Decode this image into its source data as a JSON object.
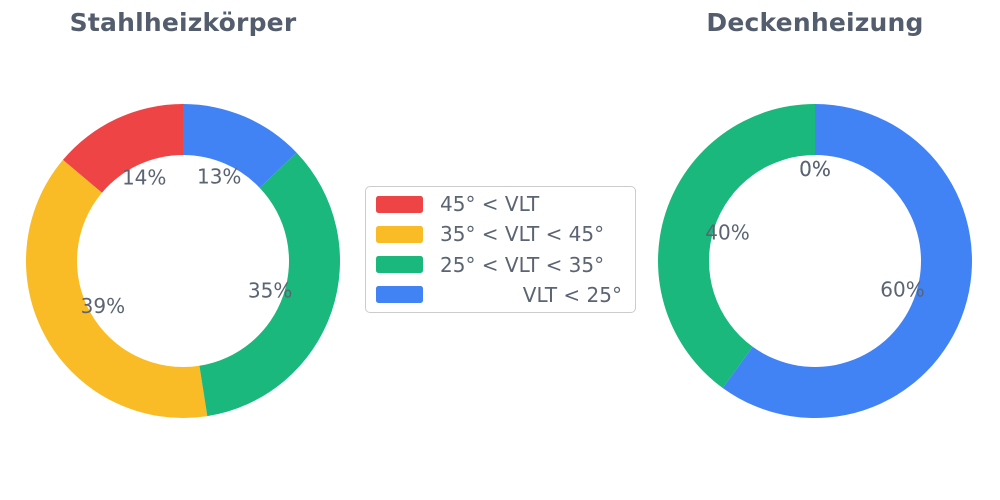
{
  "figure": {
    "background": "#ffffff",
    "label_color": "#5b6473",
    "title_color": "#535d6d"
  },
  "palette": [
    "#ee4445",
    "#f9bc26",
    "#1ab87d",
    "#4183f4"
  ],
  "legend": {
    "border_color": "#cccccc",
    "items": [
      {
        "label": "45° < VLT",
        "color": "#ee4445",
        "align": "left"
      },
      {
        "label": "35° < VLT < 45°",
        "color": "#f9bc26",
        "align": "left"
      },
      {
        "label": "25° < VLT < 35°",
        "color": "#1ab87d",
        "align": "left"
      },
      {
        "label": "VLT < 25°",
        "color": "#4183f4",
        "align": "right"
      }
    ]
  },
  "chart_data": [
    {
      "type": "pie",
      "title": "Stahlheizkörper",
      "categories": [
        "45° < VLT",
        "35° < VLT < 45°",
        "25° < VLT < 35°",
        "VLT < 25°"
      ],
      "values": [
        14,
        39,
        35,
        13
      ],
      "labels_drawn": [
        "14%",
        "39%",
        "35%",
        "13%"
      ],
      "colors": [
        "#ee4445",
        "#f9bc26",
        "#1ab87d",
        "#4183f4"
      ],
      "donut": true,
      "start_angle": 90,
      "counterclockwise": true,
      "unit": "%"
    },
    {
      "type": "pie",
      "title": "Deckenheizung",
      "categories": [
        "45° < VLT",
        "35° < VLT < 45°",
        "25° < VLT < 35°",
        "VLT < 25°"
      ],
      "values": [
        0,
        0,
        40,
        60
      ],
      "labels_drawn": [
        "0%",
        "0%",
        "40%",
        "60%"
      ],
      "colors": [
        "#ee4445",
        "#f9bc26",
        "#1ab87d",
        "#4183f4"
      ],
      "donut": true,
      "start_angle": 90,
      "counterclockwise": true,
      "unit": "%"
    }
  ]
}
